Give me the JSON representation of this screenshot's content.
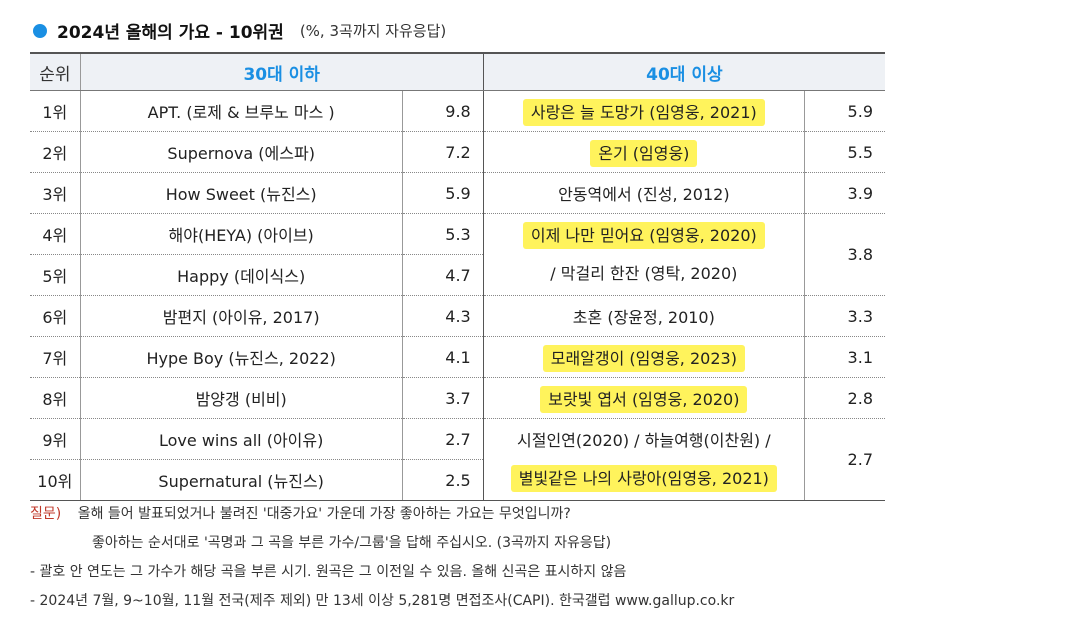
{
  "title": {
    "main": "2024년 올해의 가요 - 10위권",
    "sub": "(%, 3곡까지 자유응답)"
  },
  "table": {
    "headers": {
      "rank": "순위",
      "group1": "30대 이하",
      "group2": "40대 이상"
    },
    "rows": [
      {
        "rank": "1위",
        "song30": "APT. (로제 & 브루노 마스 )",
        "val30": "9.8",
        "song40": "사랑은 늘 도망가 (임영웅, 2021)",
        "val40": "5.9"
      },
      {
        "rank": "2위",
        "song30": "Supernova (에스파)",
        "val30": "7.2",
        "song40": "온기 (임영웅)",
        "val40": "5.5"
      },
      {
        "rank": "3위",
        "song30": "How Sweet (뉴진스)",
        "val30": "5.9",
        "song40": "안동역에서 (진성, 2012)",
        "val40": "3.9"
      },
      {
        "rank": "4위",
        "song30": "해야(HEYA) (아이브)",
        "val30": "5.3",
        "song40a": "이제 나만 믿어요 (임영웅, 2020)",
        "song40b": "/ 막걸리 한잔 (영탁, 2020)",
        "val40": "3.8"
      },
      {
        "rank": "5위",
        "song30": "Happy (데이식스)",
        "val30": "4.7"
      },
      {
        "rank": "6위",
        "song30": "밤편지 (아이유, 2017)",
        "val30": "4.3",
        "song40": "초혼 (장윤정, 2010)",
        "val40": "3.3"
      },
      {
        "rank": "7위",
        "song30": "Hype Boy (뉴진스, 2022)",
        "val30": "4.1",
        "song40": "모래알갱이 (임영웅, 2023)",
        "val40": "3.1"
      },
      {
        "rank": "8위",
        "song30": "밤양갱 (비비)",
        "val30": "3.7",
        "song40": "보랏빛 엽서 (임영웅, 2020)",
        "val40": "2.8"
      },
      {
        "rank": "9위",
        "song30": "Love wins all (아이유)",
        "val30": "2.7",
        "song40a": "시절인연(2020) / 하늘여행(이찬원) /",
        "song40b": "별빛같은 나의 사랑아(임영웅, 2021)",
        "val40": "2.7"
      },
      {
        "rank": "10위",
        "song30": "Supernatural (뉴진스)",
        "val30": "2.5"
      }
    ]
  },
  "notes": {
    "q_label": "질문)",
    "q_line1": "올해 들어 발표되었거나 불려진 '대중가요' 가운데 가장 좋아하는 가요는 무엇입니까?",
    "q_line2": "좋아하는 순서대로 '곡명과 그 곡을 부른 가수/그룹'을 답해 주십시오. (3곡까지 자유응답)",
    "note1": "- 괄호 안 연도는 그 가수가 해당 곡을 부른 시기. 원곡은 그 이전일 수 있음. 올해 신곡은 표시하지 않음",
    "note2": "- 2024년 7월, 9~10월, 11월 전국(제주 제외) 만 13세 이상 5,281명 면접조사(CAPI). 한국갤럽 www.gallup.co.kr"
  },
  "colors": {
    "accent": "#1a8fe3",
    "highlight": "#fff35c",
    "question_label": "#c0392b"
  }
}
